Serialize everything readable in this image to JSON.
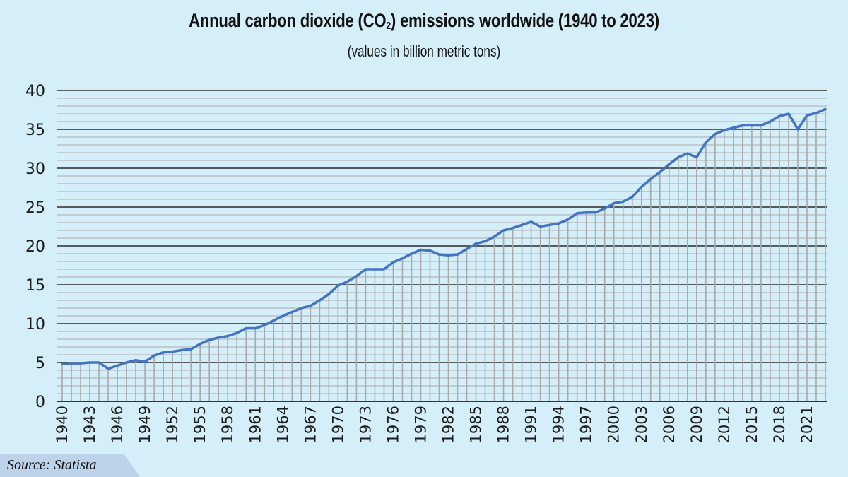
{
  "chart_data": {
    "type": "line",
    "title_prefix": "Annual carbon dioxide (CO",
    "title_sub": "2",
    "title_suffix": ") emissions worldwide (1940 to 2023)",
    "subtitle": "(values in billion metric tons)",
    "xlabel": "",
    "ylabel": "",
    "ylim": [
      0,
      40
    ],
    "yticks": [
      "0",
      "5",
      "10",
      "15",
      "20",
      "25",
      "30",
      "35",
      "40"
    ],
    "grid": true,
    "legend": "none",
    "series": [
      {
        "name": "CO2 emissions",
        "color": "#4472c4",
        "x": [
          1940,
          1941,
          1942,
          1943,
          1944,
          1945,
          1946,
          1947,
          1948,
          1949,
          1950,
          1951,
          1952,
          1953,
          1954,
          1955,
          1956,
          1957,
          1958,
          1959,
          1960,
          1961,
          1962,
          1963,
          1964,
          1965,
          1966,
          1967,
          1968,
          1969,
          1970,
          1971,
          1972,
          1973,
          1974,
          1975,
          1976,
          1977,
          1978,
          1979,
          1980,
          1981,
          1982,
          1983,
          1984,
          1985,
          1986,
          1987,
          1988,
          1989,
          1990,
          1991,
          1992,
          1993,
          1994,
          1995,
          1996,
          1997,
          1998,
          1999,
          2000,
          2001,
          2002,
          2003,
          2004,
          2005,
          2006,
          2007,
          2008,
          2009,
          2010,
          2011,
          2012,
          2013,
          2014,
          2015,
          2016,
          2017,
          2018,
          2019,
          2020,
          2021,
          2022,
          2023
        ],
        "values": [
          4.8,
          4.9,
          4.9,
          5.0,
          5.0,
          4.2,
          4.6,
          5.0,
          5.3,
          5.1,
          5.9,
          6.3,
          6.4,
          6.6,
          6.7,
          7.4,
          7.9,
          8.2,
          8.4,
          8.8,
          9.4,
          9.4,
          9.8,
          10.4,
          11.0,
          11.5,
          12.0,
          12.3,
          13.0,
          13.8,
          14.9,
          15.4,
          16.1,
          17.0,
          17.0,
          17.0,
          17.9,
          18.4,
          19.0,
          19.5,
          19.4,
          18.9,
          18.8,
          18.9,
          19.6,
          20.3,
          20.6,
          21.2,
          22.0,
          22.3,
          22.7,
          23.1,
          22.5,
          22.7,
          22.9,
          23.4,
          24.2,
          24.3,
          24.3,
          24.8,
          25.5,
          25.7,
          26.3,
          27.6,
          28.6,
          29.5,
          30.5,
          31.4,
          31.9,
          31.4,
          33.3,
          34.4,
          34.9,
          35.2,
          35.5,
          35.5,
          35.5,
          36.0,
          36.7,
          37.0,
          35.0,
          36.8,
          37.1,
          37.6
        ]
      }
    ],
    "xtick_labels": [
      "1940",
      "1943",
      "1946",
      "1949",
      "1952",
      "1955",
      "1958",
      "1961",
      "1964",
      "1967",
      "1970",
      "1973",
      "1976",
      "1979",
      "1982",
      "1985",
      "1988",
      "1991",
      "1994",
      "1997",
      "2000",
      "2003",
      "2006",
      "2009",
      "2012",
      "2015",
      "2018",
      "2021"
    ]
  },
  "colors": {
    "background": "#d4eefa",
    "line": "#4472c4",
    "major_grid": "#2b2b2b",
    "minor_grid": "#b9bfc4",
    "drop_lines": "#a9a9a9"
  },
  "footer": {
    "source": "Source: Statista"
  }
}
